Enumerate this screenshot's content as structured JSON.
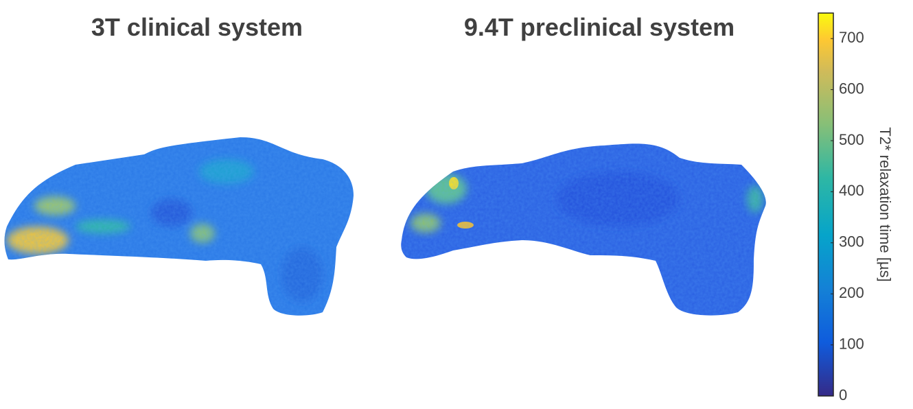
{
  "panels": [
    {
      "title": "3T clinical system"
    },
    {
      "title": "9.4T preclinical system"
    }
  ],
  "colorbar": {
    "label": "T2* relaxation time [µs]",
    "lim": [
      0,
      750
    ],
    "ticks": [
      0,
      100,
      200,
      300,
      400,
      500,
      600,
      700
    ]
  }
}
